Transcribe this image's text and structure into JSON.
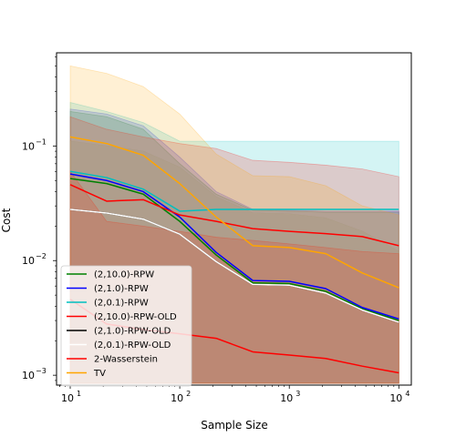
{
  "chart_data": {
    "type": "line",
    "title": "",
    "xlabel": "Sample Size",
    "ylabel": "Cost",
    "xscale": "log",
    "yscale": "log",
    "xlim": [
      7.5,
      13000
    ],
    "ylim": [
      0.00082,
      0.65
    ],
    "x_ticks": [
      {
        "value": 10,
        "base": "10",
        "exp": "1"
      },
      {
        "value": 100,
        "base": "10",
        "exp": "2"
      },
      {
        "value": 1000,
        "base": "10",
        "exp": "3"
      },
      {
        "value": 10000,
        "base": "10",
        "exp": "4"
      }
    ],
    "y_ticks": [
      {
        "value": 0.001,
        "base": "10",
        "exp": "−3"
      },
      {
        "value": 0.01,
        "base": "10",
        "exp": "−2"
      },
      {
        "value": 0.1,
        "base": "10",
        "exp": "−1"
      }
    ],
    "legend_position": "lower-left",
    "grid": false,
    "x": [
      10,
      21.5,
      46.4,
      100,
      215,
      464,
      1000,
      2150,
      4640,
      10000
    ],
    "series": [
      {
        "name": "(2,10.0)-RPW",
        "color": "#008000",
        "values": [
          0.052,
          0.047,
          0.038,
          0.022,
          0.0112,
          0.0064,
          0.0063,
          0.0054,
          0.0038,
          0.003
        ],
        "band_upper": [
          0.2,
          0.18,
          0.14,
          0.07,
          0.038,
          0.0275,
          0.027,
          0.0265,
          0.0265,
          0.0265
        ],
        "band_lower": [
          0.00085,
          0.00085,
          0.00085,
          0.00085,
          0.00085,
          0.00085,
          0.00085,
          0.00085,
          0.00085,
          0.00085
        ]
      },
      {
        "name": "(2,1.0)-RPW",
        "color": "#0000ff",
        "values": [
          0.057,
          0.05,
          0.04,
          0.024,
          0.0118,
          0.0067,
          0.0066,
          0.0057,
          0.0039,
          0.0031
        ],
        "band_upper": [
          0.21,
          0.19,
          0.15,
          0.08,
          0.04,
          0.028,
          0.0275,
          0.027,
          0.027,
          0.027
        ],
        "band_lower": [
          0.00085,
          0.00085,
          0.00085,
          0.00085,
          0.00085,
          0.00085,
          0.00085,
          0.00085,
          0.00085,
          0.00085
        ]
      },
      {
        "name": "(2,0.1)-RPW",
        "color": "#00bfbf",
        "values": [
          0.06,
          0.053,
          0.042,
          0.027,
          0.028,
          0.028,
          0.028,
          0.028,
          0.028,
          0.028
        ],
        "band_upper": [
          0.24,
          0.2,
          0.16,
          0.11,
          0.11,
          0.11,
          0.11,
          0.11,
          0.11,
          0.11
        ],
        "band_lower": [
          0.00085,
          0.00085,
          0.00085,
          0.00085,
          0.00085,
          0.00085,
          0.00085,
          0.00085,
          0.00085,
          0.00085
        ]
      },
      {
        "name": "(2,10.0)-RPW-OLD",
        "color": "#ff0000",
        "values": [
          0.046,
          0.033,
          0.034,
          0.025,
          0.022,
          0.019,
          0.018,
          0.0172,
          0.0162,
          0.0135
        ],
        "band_upper": [
          0.18,
          0.14,
          0.12,
          0.105,
          0.095,
          0.075,
          0.072,
          0.068,
          0.063,
          0.054
        ],
        "band_lower": [
          0.00085,
          0.00085,
          0.00085,
          0.00085,
          0.00085,
          0.00085,
          0.00085,
          0.00085,
          0.00085,
          0.00085
        ]
      },
      {
        "name": "(2,1.0)-RPW-OLD",
        "color": "#000000",
        "values": [
          0.028,
          0.026,
          0.023,
          0.017,
          0.0098,
          0.0062,
          0.0061,
          0.0052,
          0.0037,
          0.0029
        ],
        "band_upper": [
          0.11,
          0.1,
          0.09,
          0.065,
          0.036,
          0.026,
          0.0255,
          0.0235,
          0.018,
          0.012
        ],
        "band_lower": [
          0.00085,
          0.00085,
          0.00085,
          0.00085,
          0.00085,
          0.00085,
          0.00085,
          0.00085,
          0.00085,
          0.00085
        ]
      },
      {
        "name": "(2,0.1)-RPW-OLD",
        "color": "#ffffff",
        "values": [
          0.028,
          0.026,
          0.023,
          0.017,
          0.0098,
          0.0062,
          0.0061,
          0.0052,
          0.0037,
          0.0029
        ],
        "band_upper": [
          0.11,
          0.1,
          0.09,
          0.065,
          0.036,
          0.026,
          0.0255,
          0.0235,
          0.018,
          0.012
        ],
        "band_lower": [
          0.00085,
          0.00085,
          0.00085,
          0.00085,
          0.00085,
          0.00085,
          0.00085,
          0.00085,
          0.00085,
          0.00085
        ]
      },
      {
        "name": "2-Wasserstein",
        "color": "#ff0000",
        "values": [
          0.0046,
          0.0028,
          0.0025,
          0.0023,
          0.0021,
          0.0016,
          0.0015,
          0.0014,
          0.0012,
          0.00105
        ],
        "band_upper": [
          0.06,
          0.022,
          0.02,
          0.018,
          0.016,
          0.015,
          0.014,
          0.013,
          0.012,
          0.0115
        ],
        "band_lower": [
          0.00085,
          0.00085,
          0.00085,
          0.00085,
          0.00085,
          0.00085,
          0.00085,
          0.00085,
          0.00085,
          0.00085
        ]
      },
      {
        "name": "TV",
        "color": "#ffa500",
        "values": [
          0.12,
          0.105,
          0.083,
          0.047,
          0.024,
          0.0135,
          0.013,
          0.0115,
          0.0078,
          0.0058
        ],
        "band_upper": [
          0.5,
          0.43,
          0.33,
          0.19,
          0.085,
          0.055,
          0.054,
          0.045,
          0.03,
          0.025
        ],
        "band_lower": [
          0.00085,
          0.00085,
          0.00085,
          0.00085,
          0.00085,
          0.00085,
          0.00085,
          0.00085,
          0.00085,
          0.00085
        ]
      }
    ]
  }
}
